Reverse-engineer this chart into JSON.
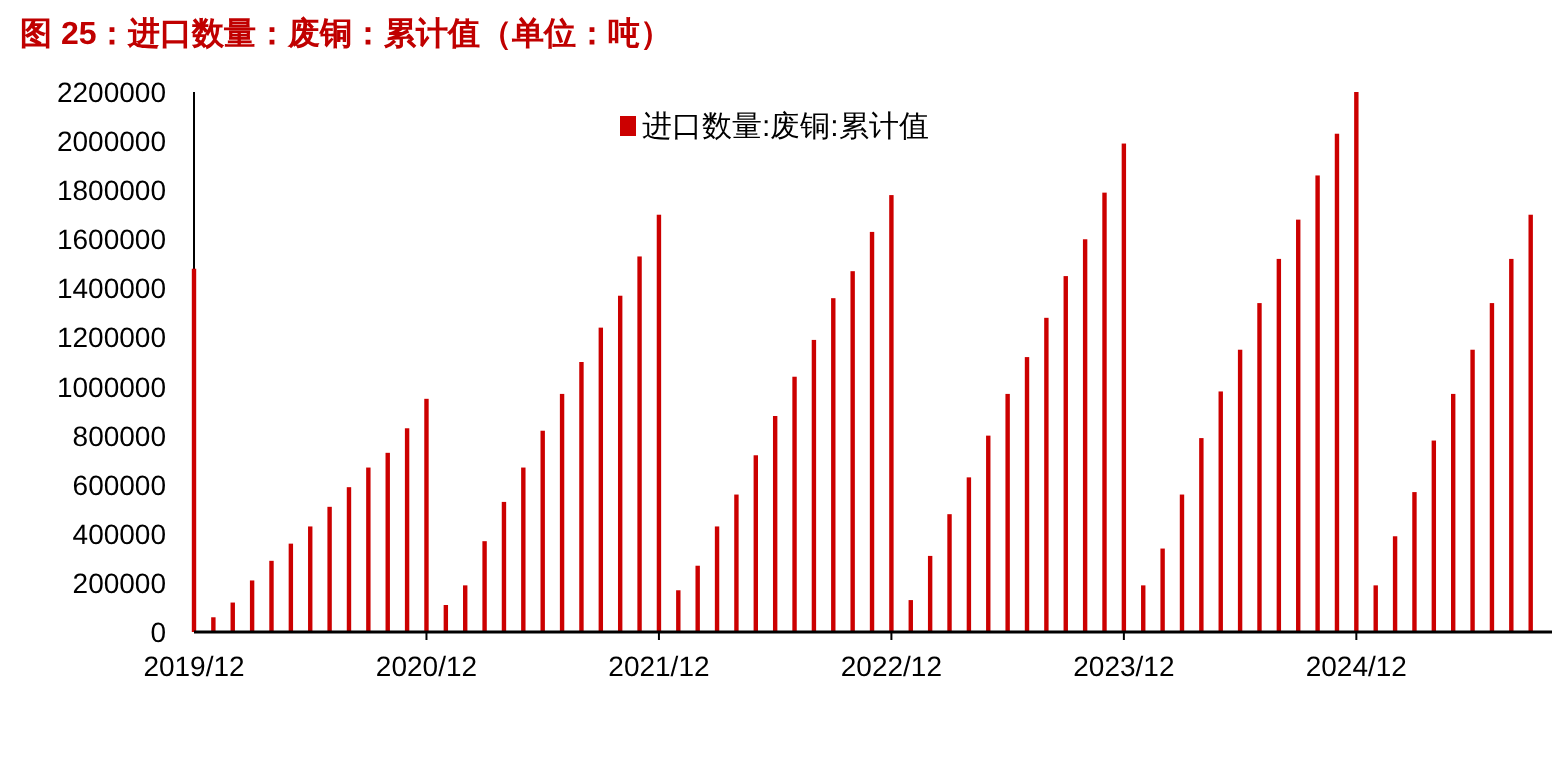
{
  "chart_data": {
    "type": "bar",
    "title": "图 25：进口数量：废铜：累计值（单位：吨）",
    "categories": [
      "2019/12",
      null,
      null,
      null,
      null,
      null,
      null,
      null,
      null,
      null,
      null,
      null,
      "2020/12",
      null,
      null,
      null,
      null,
      null,
      null,
      null,
      null,
      null,
      null,
      null,
      "2021/12",
      null,
      null,
      null,
      null,
      null,
      null,
      null,
      null,
      null,
      null,
      null,
      "2022/12",
      null,
      null,
      null,
      null,
      null,
      null,
      null,
      null,
      null,
      null,
      null,
      "2023/12",
      null,
      null,
      null,
      null,
      null,
      null,
      null,
      null,
      null,
      null,
      null,
      "2024/12",
      null,
      null,
      null,
      null,
      null,
      null,
      null,
      null,
      null
    ],
    "series": [
      {
        "name": "进口数量:废铜:累计值",
        "color": "#cc0000",
        "values": [
          1480000,
          60000,
          120000,
          210000,
          290000,
          360000,
          430000,
          510000,
          590000,
          670000,
          730000,
          830000,
          950000,
          110000,
          190000,
          370000,
          530000,
          670000,
          820000,
          970000,
          1100000,
          1240000,
          1370000,
          1530000,
          1700000,
          170000,
          270000,
          430000,
          560000,
          720000,
          880000,
          1040000,
          1190000,
          1360000,
          1470000,
          1630000,
          1780000,
          130000,
          310000,
          480000,
          630000,
          800000,
          970000,
          1120000,
          1280000,
          1450000,
          1600000,
          1790000,
          1990000,
          190000,
          340000,
          560000,
          790000,
          980000,
          1150000,
          1340000,
          1520000,
          1680000,
          1860000,
          2030000,
          2200000,
          190000,
          390000,
          570000,
          780000,
          970000,
          1150000,
          1340000,
          1520000,
          1700000
        ]
      }
    ],
    "ylim": [
      0,
      2200000
    ],
    "yticks": [
      0,
      200000,
      400000,
      600000,
      800000,
      1000000,
      1200000,
      1400000,
      1600000,
      1800000,
      2000000,
      2200000
    ],
    "grid": false,
    "legend": "top"
  }
}
